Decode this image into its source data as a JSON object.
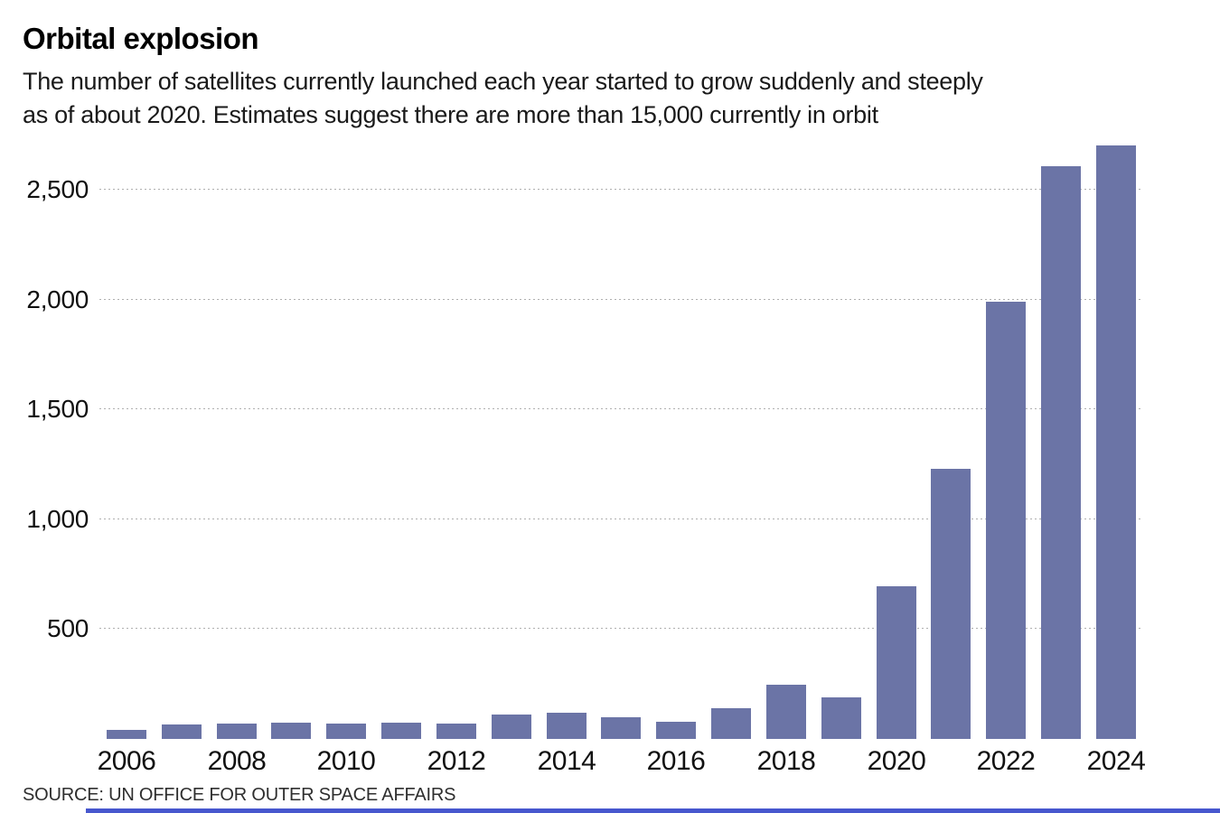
{
  "header": {
    "title": "Orbital explosion",
    "subtitle_line1": "The number of satellites currently launched each year started to grow suddenly and steeply",
    "subtitle_line2": "as of about 2020. Estimates suggest there are more than 15,000 currently in orbit"
  },
  "chart_data": {
    "type": "bar",
    "title": "Orbital explosion",
    "subtitle": "The number of satellites currently launched each year started to grow suddenly and steeply as of about 2020. Estimates suggest there are more than 15,000 currently in orbit",
    "categories": [
      2006,
      2007,
      2008,
      2009,
      2010,
      2011,
      2012,
      2013,
      2014,
      2015,
      2016,
      2017,
      2018,
      2019,
      2020,
      2021,
      2022,
      2023,
      2024
    ],
    "values": [
      40,
      65,
      70,
      75,
      70,
      75,
      70,
      110,
      120,
      100,
      80,
      140,
      245,
      190,
      695,
      1230,
      1990,
      2605,
      2700
    ],
    "x_tick_labels": [
      "2006",
      "2008",
      "2010",
      "2012",
      "2014",
      "2016",
      "2018",
      "2020",
      "2022",
      "2024"
    ],
    "y_ticks": [
      {
        "value": 500,
        "label": "500"
      },
      {
        "value": 1000,
        "label": "1,000"
      },
      {
        "value": 1500,
        "label": "1,500"
      },
      {
        "value": 2000,
        "label": "2,000"
      },
      {
        "value": 2500,
        "label": "2,500"
      }
    ],
    "xlabel": "",
    "ylabel": "",
    "ylim": [
      0,
      2750
    ],
    "grid": "horizontal-dotted",
    "legend": "none",
    "bar_color": "#6b74a6"
  },
  "footer": {
    "source": "SOURCE: UN OFFICE FOR OUTER SPACE AFFAIRS"
  },
  "colors": {
    "bar": "#6b74a6",
    "gridline": "#b0b0b0",
    "text": "#111111",
    "bottom_strip": "#4757ce",
    "background": "#ffffff"
  }
}
